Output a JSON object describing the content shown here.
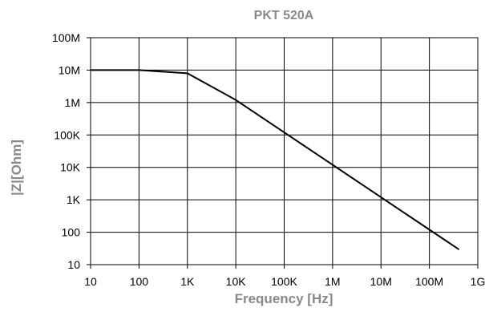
{
  "chart_data": {
    "type": "line",
    "title": "PKT 520A",
    "xlabel": "Frequency [Hz]",
    "ylabel": "|Z|[Ohm]",
    "x_scale": "log",
    "y_scale": "log",
    "xlim": [
      10,
      1000000000
    ],
    "ylim": [
      10,
      100000000
    ],
    "grid": true,
    "x_ticks": [
      {
        "value": 10,
        "label": "10"
      },
      {
        "value": 100,
        "label": "100"
      },
      {
        "value": 1000,
        "label": "1K"
      },
      {
        "value": 10000,
        "label": "10K"
      },
      {
        "value": 100000,
        "label": "100K"
      },
      {
        "value": 1000000,
        "label": "1M"
      },
      {
        "value": 10000000,
        "label": "10M"
      },
      {
        "value": 100000000,
        "label": "100M"
      },
      {
        "value": 1000000000,
        "label": "1G"
      }
    ],
    "y_ticks": [
      {
        "value": 10,
        "label": "10"
      },
      {
        "value": 100,
        "label": "100"
      },
      {
        "value": 1000,
        "label": "1K"
      },
      {
        "value": 10000,
        "label": "10K"
      },
      {
        "value": 100000,
        "label": "100K"
      },
      {
        "value": 1000000,
        "label": "1M"
      },
      {
        "value": 10000000,
        "label": "10M"
      },
      {
        "value": 100000000,
        "label": "100M"
      }
    ],
    "series": [
      {
        "color": "#000000",
        "points": [
          {
            "x": 10,
            "y": 10000000
          },
          {
            "x": 100,
            "y": 10000000
          },
          {
            "x": 1000,
            "y": 8000000
          },
          {
            "x": 10000,
            "y": 1200000
          },
          {
            "x": 100000,
            "y": 120000
          },
          {
            "x": 1000000,
            "y": 12000
          },
          {
            "x": 10000000,
            "y": 1200
          },
          {
            "x": 100000000,
            "y": 120
          },
          {
            "x": 400000000,
            "y": 30
          }
        ]
      }
    ]
  }
}
